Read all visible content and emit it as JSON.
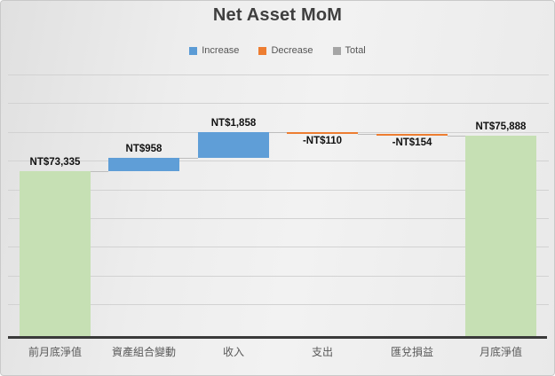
{
  "chart_data": {
    "type": "waterfall",
    "title": "Net Asset MoM",
    "legend": [
      {
        "label": "Increase",
        "color": "#5b9bd5"
      },
      {
        "label": "Decrease",
        "color": "#ed7d31"
      },
      {
        "label": "Total",
        "color": "#a5a5a5"
      }
    ],
    "categories": [
      "前月底淨值",
      "資產組合變動",
      "收入",
      "支出",
      "匯兌損益",
      "月底淨值"
    ],
    "bars": [
      {
        "category": "前月底淨值",
        "label": "NT$73,335",
        "value": 73335,
        "kind": "total"
      },
      {
        "category": "資產組合變動",
        "label": "NT$958",
        "value": 958,
        "kind": "increase"
      },
      {
        "category": "收入",
        "label": "NT$1,858",
        "value": 1858,
        "kind": "increase"
      },
      {
        "category": "支出",
        "label": "-NT$110",
        "value": -110,
        "kind": "decrease"
      },
      {
        "category": "匯兌損益",
        "label": "-NT$154",
        "value": -154,
        "kind": "decrease"
      },
      {
        "category": "月底淨值",
        "label": "NT$75,888",
        "value": 75888,
        "kind": "total"
      }
    ],
    "colors": {
      "increase": "#5f9ed7",
      "decrease": "#ed7d31",
      "total_bar_fill": "#c6e0b4",
      "legend_total": "#a5a5a5"
    },
    "layout_hints": {
      "legend_position": "top",
      "grid": "horizontal",
      "y_axis_labels_visible": false
    }
  }
}
